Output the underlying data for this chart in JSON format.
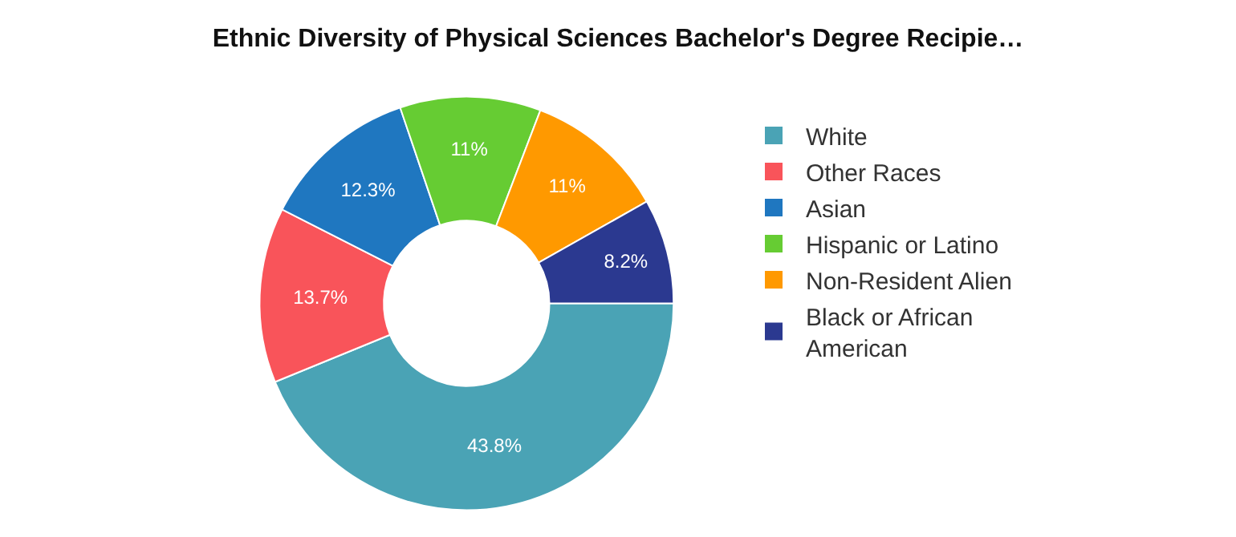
{
  "chart_data": {
    "type": "donut",
    "title": "Ethnic Diversity of Physical Sciences Bachelor's Degree Recipie…",
    "categories": [
      "White",
      "Other Races",
      "Asian",
      "Hispanic or Latino",
      "Non-Resident Alien",
      "Black or African American"
    ],
    "values": [
      43.8,
      13.7,
      12.3,
      11,
      11,
      8.2
    ],
    "colors": [
      "#4aa3b5",
      "#f9545a",
      "#1f77c0",
      "#66cc33",
      "#ff9900",
      "#2b3990"
    ],
    "value_labels": [
      "43.8%",
      "13.7%",
      "12.3%",
      "11%",
      "11%",
      "8.2%"
    ],
    "legend": "right"
  }
}
